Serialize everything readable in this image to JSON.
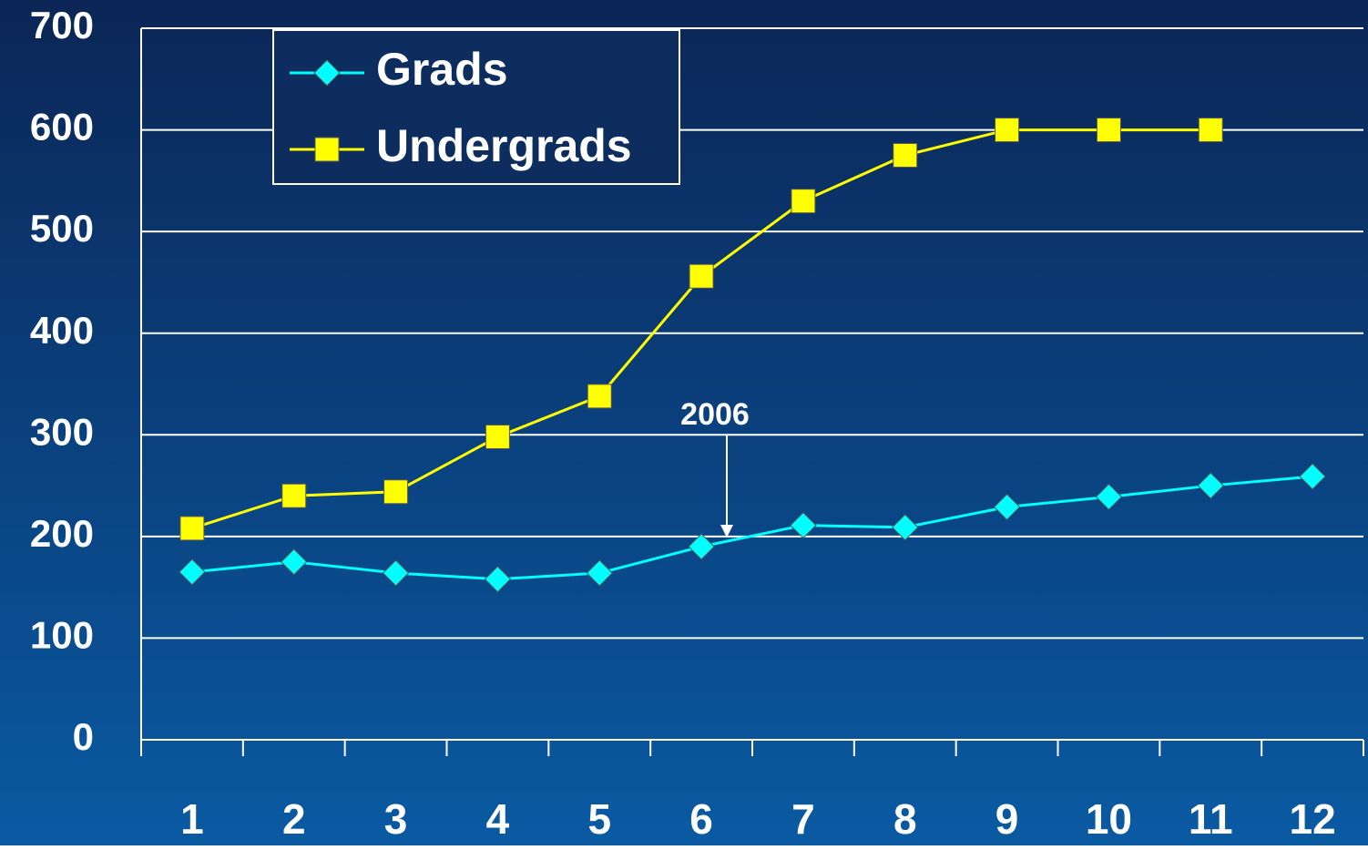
{
  "chart_data": {
    "type": "line",
    "annotation": "2006",
    "categories": [
      "1",
      "2",
      "3",
      "4",
      "5",
      "6",
      "7",
      "8",
      "9",
      "10",
      "11",
      "12"
    ],
    "series": [
      {
        "name": "Grads",
        "color": "#00ffff",
        "marker": "diamond",
        "values": [
          165,
          175,
          164,
          158,
          164,
          190,
          211,
          209,
          229,
          239,
          250,
          259
        ]
      },
      {
        "name": "Undergrads",
        "color": "#ffff00",
        "marker": "square",
        "values": [
          208,
          240,
          244,
          298,
          338,
          456,
          530,
          575,
          600,
          600,
          600,
          null
        ]
      }
    ],
    "ylim": [
      0,
      700
    ],
    "yticks": [
      0,
      100,
      200,
      300,
      400,
      500,
      600,
      700
    ],
    "grid": true
  }
}
